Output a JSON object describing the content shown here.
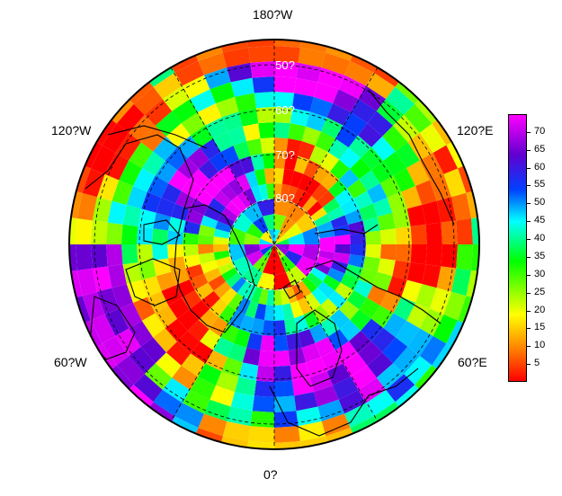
{
  "map": {
    "projection": "north-polar-stereographic",
    "longitude_labels": {
      "top": "180?W",
      "upper_left": "120?W",
      "upper_right": "120?E",
      "lower_left": "60?W",
      "lower_right": "60?E",
      "bottom": "0?"
    },
    "latitude_labels": [
      "50?",
      "60?",
      "70?",
      "80?"
    ],
    "colors": {
      "land_outline": "#000000",
      "graticule": "#000000"
    }
  },
  "colorbar": {
    "min": 0,
    "max": 75,
    "ticks": [
      "5",
      "10",
      "15",
      "20",
      "25",
      "30",
      "35",
      "40",
      "45",
      "50",
      "55",
      "60",
      "65",
      "70"
    ],
    "palette": [
      "#ff0000",
      "#ff8000",
      "#ffff00",
      "#00ff00",
      "#00ffff",
      "#0040ff",
      "#6000d0",
      "#ff00ff"
    ]
  }
}
